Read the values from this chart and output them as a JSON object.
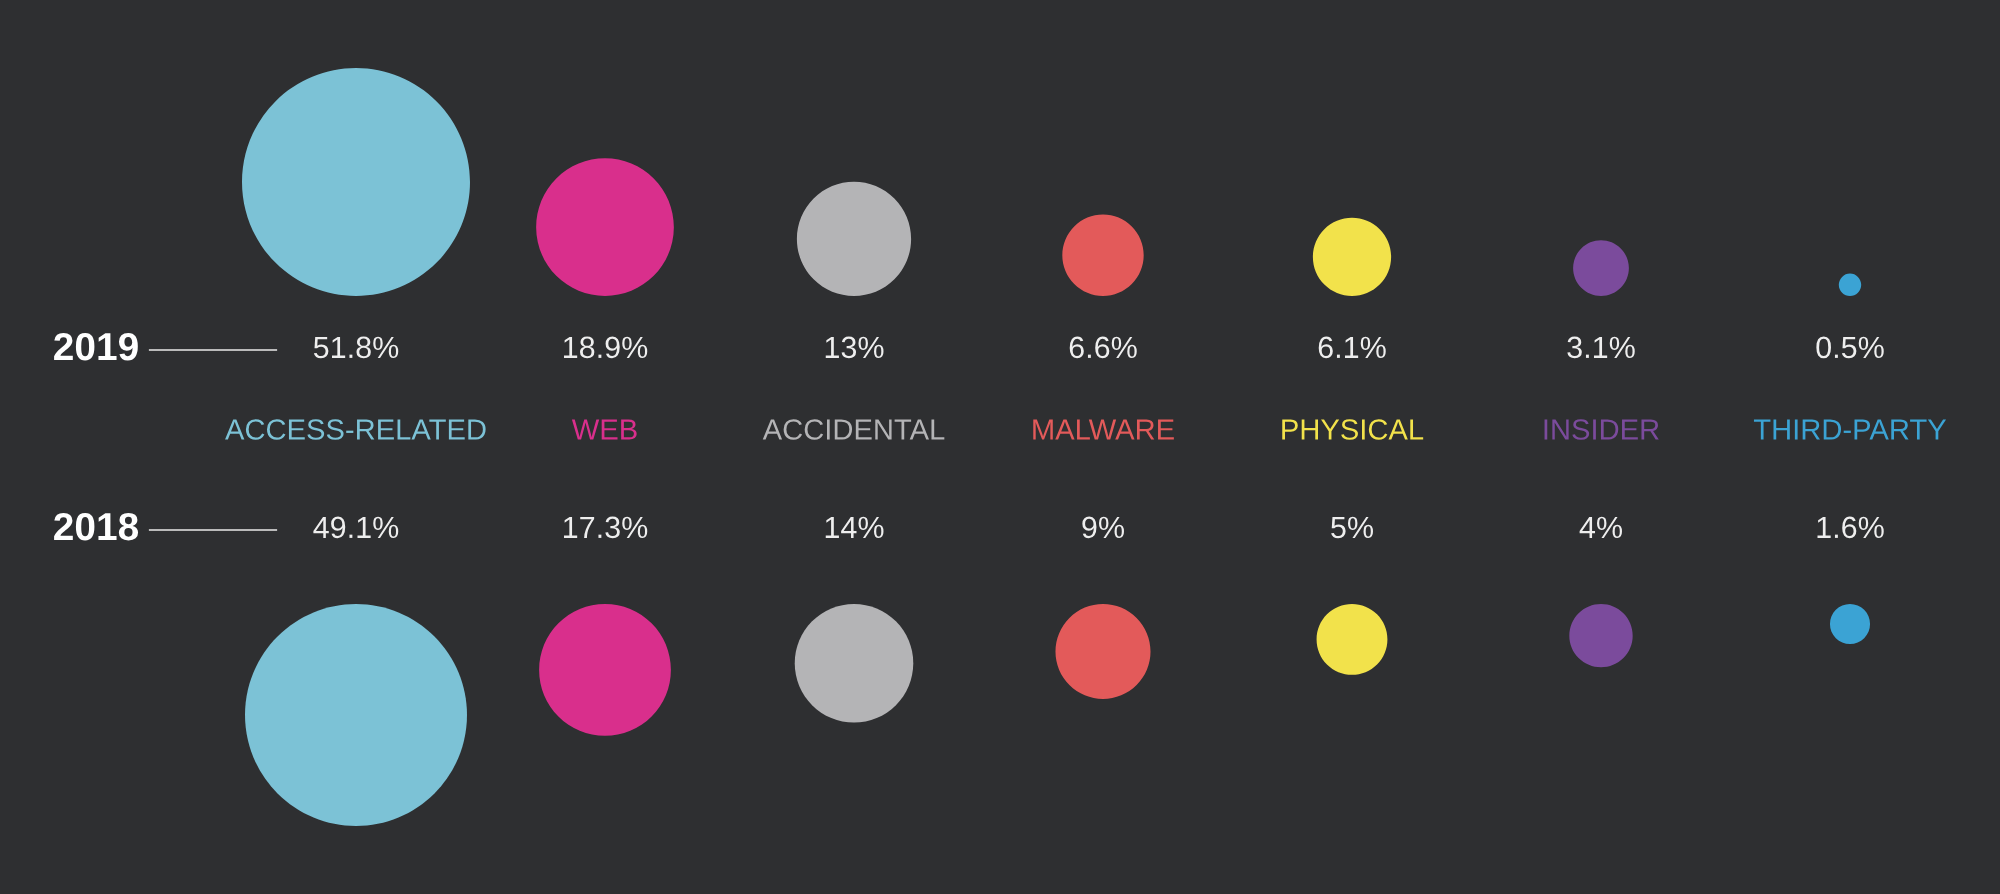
{
  "chart_data": {
    "type": "other",
    "categories": [
      "ACCESS-RELATED",
      "WEB",
      "ACCIDENTAL",
      "MALWARE",
      "PHYSICAL",
      "INSIDER",
      "THIRD-PARTY"
    ],
    "colors": [
      "#7cc2d6",
      "#d92f8c",
      "#b4b4b6",
      "#e35a5a",
      "#f2e24b",
      "#7b4b9c",
      "#3ba3d4"
    ],
    "series": [
      {
        "name": "2019",
        "values": [
          51.8,
          18.9,
          13,
          6.6,
          6.1,
          3.1,
          0.5
        ],
        "value_labels": [
          "51.8%",
          "18.9%",
          "13%",
          "6.6%",
          "6.1%",
          "3.1%",
          "0.5%"
        ]
      },
      {
        "name": "2018",
        "values": [
          49.1,
          17.3,
          14,
          9,
          5,
          4,
          1.6
        ],
        "value_labels": [
          "49.1%",
          "17.3%",
          "14%",
          "9%",
          "5%",
          "4%",
          "1.6%"
        ]
      }
    ]
  }
}
